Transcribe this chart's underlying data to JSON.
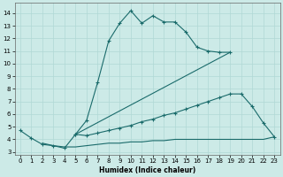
{
  "xlabel": "Humidex (Indice chaleur)",
  "bg_color": "#cceae7",
  "grid_color": "#b0d8d5",
  "line_color": "#1a6b6b",
  "xlim": [
    -0.5,
    23.5
  ],
  "ylim": [
    2.8,
    14.8
  ],
  "xticks": [
    0,
    1,
    2,
    3,
    4,
    5,
    6,
    7,
    8,
    9,
    10,
    11,
    12,
    13,
    14,
    15,
    16,
    17,
    18,
    19,
    20,
    21,
    22,
    23
  ],
  "yticks": [
    3,
    4,
    5,
    6,
    7,
    8,
    9,
    10,
    11,
    12,
    13,
    14
  ],
  "curve_main": {
    "x": [
      0,
      1,
      2,
      3,
      4,
      5,
      6,
      7,
      8,
      9,
      10,
      11,
      12,
      13,
      14,
      15,
      16,
      17,
      18,
      19
    ],
    "y": [
      4.7,
      4.1,
      3.6,
      3.5,
      3.3,
      4.4,
      5.5,
      8.5,
      11.8,
      13.2,
      14.2,
      13.2,
      13.8,
      13.3,
      13.3,
      12.5,
      11.3,
      11.0,
      10.9,
      10.9
    ]
  },
  "curve_arc": {
    "x": [
      5,
      6,
      7,
      8,
      9,
      10,
      11,
      12,
      13,
      14,
      15,
      16,
      17,
      18,
      19,
      20,
      21,
      22,
      23
    ],
    "y": [
      4.4,
      4.3,
      4.5,
      4.7,
      4.9,
      5.1,
      5.4,
      5.6,
      5.9,
      6.1,
      6.4,
      6.7,
      7.0,
      7.3,
      7.6,
      7.6,
      6.6,
      5.3,
      4.2
    ]
  },
  "line_flat": {
    "x": [
      2,
      3,
      4,
      5,
      6,
      7,
      8,
      9,
      10,
      11,
      12,
      13,
      14,
      15,
      16,
      17,
      18,
      19,
      20,
      21,
      22,
      23
    ],
    "y": [
      3.7,
      3.5,
      3.4,
      3.4,
      3.5,
      3.6,
      3.7,
      3.7,
      3.8,
      3.8,
      3.9,
      3.9,
      4.0,
      4.0,
      4.0,
      4.0,
      4.0,
      4.0,
      4.0,
      4.0,
      4.0,
      4.2
    ]
  },
  "line_diag": {
    "x": [
      5,
      19
    ],
    "y": [
      4.4,
      10.9
    ]
  }
}
